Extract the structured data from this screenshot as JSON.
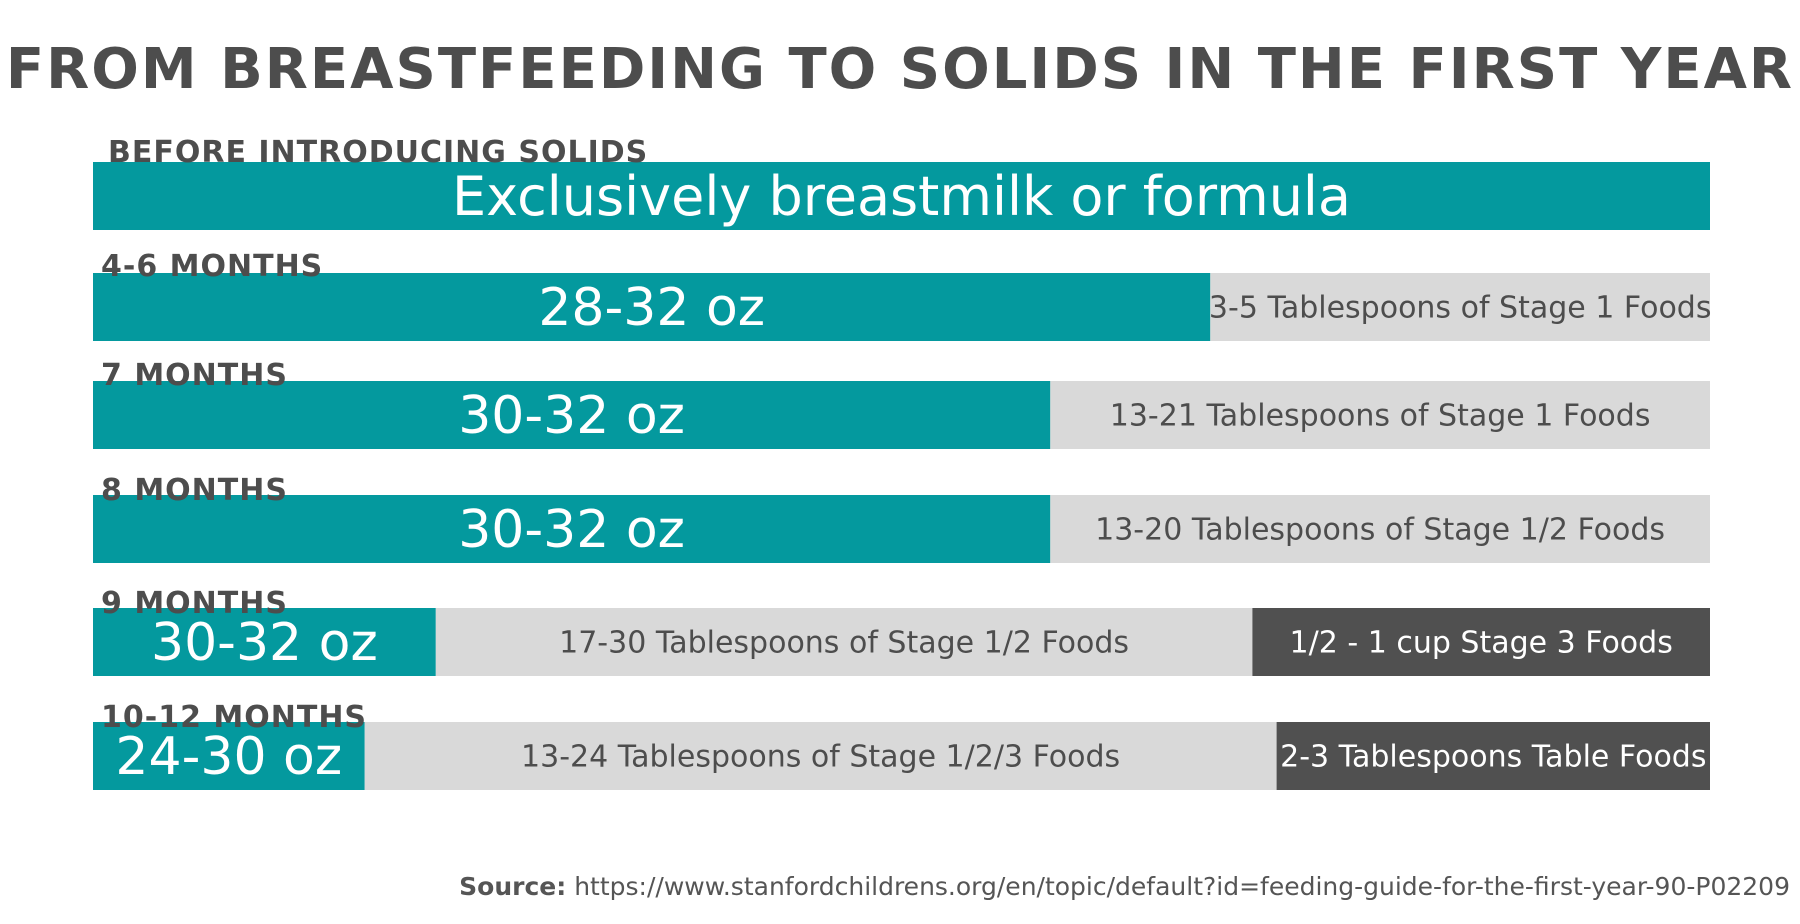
{
  "title": "FROM BREASTFEEDING TO SOLIDS IN THE FIRST YEAR",
  "source": {
    "label": "Source:",
    "url": "https://www.stanfordchildrens.org/en/topic/default?id=feeding-guide-for-the-first-year-90-P02209"
  },
  "colors": {
    "milk": "#04999e",
    "purees": "#d9d9d9",
    "solids": "#505050",
    "label_text": "#4d4d4d",
    "light_text": "#ffffff",
    "dark_text": "#4d4d4d"
  },
  "chart_data": {
    "type": "bar",
    "orientation": "horizontal",
    "stacked": true,
    "title": "FROM BREASTFEEDING TO SOLIDS IN THE FIRST YEAR",
    "categories": [
      "BEFORE INTRODUCING SOLIDS",
      "4-6 MONTHS",
      "7 MONTHS",
      "8 MONTHS",
      "9 MONTHS",
      "10-12 MONTHS"
    ],
    "rows": [
      {
        "label": "BEFORE INTRODUCING SOLIDS",
        "segments": [
          {
            "text": "Exclusively breastmilk or formula",
            "fraction": 1.0,
            "kind": "milk"
          }
        ]
      },
      {
        "label": "4-6 MONTHS",
        "segments": [
          {
            "text": "28-32 oz",
            "fraction": 0.691,
            "kind": "milk"
          },
          {
            "text": "3-5 Tablespoons of Stage 1 Foods",
            "fraction": 0.309,
            "kind": "purees"
          }
        ]
      },
      {
        "label": "7 MONTHS",
        "segments": [
          {
            "text": "30-32 oz",
            "fraction": 0.592,
            "kind": "milk"
          },
          {
            "text": "13-21 Tablespoons of Stage 1 Foods",
            "fraction": 0.408,
            "kind": "purees"
          }
        ]
      },
      {
        "label": "8 MONTHS",
        "segments": [
          {
            "text": "30-32 oz",
            "fraction": 0.592,
            "kind": "milk"
          },
          {
            "text": "13-20 Tablespoons of Stage 1/2 Foods",
            "fraction": 0.408,
            "kind": "purees"
          }
        ]
      },
      {
        "label": "9 MONTHS",
        "segments": [
          {
            "text": "30-32 oz",
            "fraction": 0.212,
            "kind": "milk"
          },
          {
            "text": "17-30 Tablespoons of Stage 1/2 Foods",
            "fraction": 0.505,
            "kind": "purees"
          },
          {
            "text": "1/2 - 1 cup Stage 3 Foods",
            "fraction": 0.283,
            "kind": "solids"
          }
        ]
      },
      {
        "label": "10-12 MONTHS",
        "segments": [
          {
            "text": "24-30 oz",
            "fraction": 0.168,
            "kind": "milk"
          },
          {
            "text": "13-24 Tablespoons of Stage 1/2/3 Foods",
            "fraction": 0.564,
            "kind": "purees"
          },
          {
            "text": "2-3 Tablespoons Table Foods",
            "fraction": 0.268,
            "kind": "solids"
          }
        ]
      }
    ]
  }
}
